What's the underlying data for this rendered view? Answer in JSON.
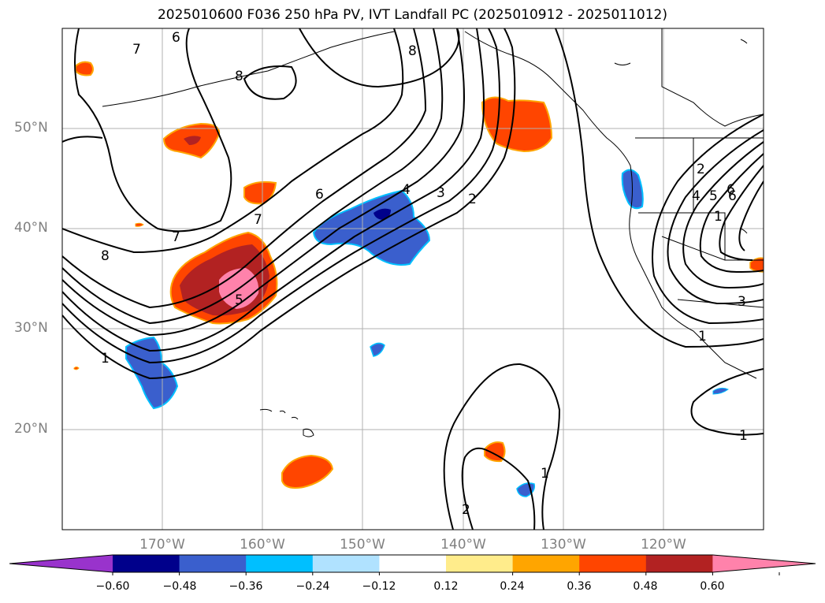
{
  "title": "2025010600 F036 250 hPa PV, IVT Landfall PC (2025010912 - 2025011012)",
  "lat_labels": [
    "50°N",
    "40°N",
    "30°N",
    "20°N"
  ],
  "lon_labels": [
    "170°W",
    "160°W",
    "150°W",
    "140°W",
    "130°W",
    "120°W"
  ],
  "colorbar": {
    "ticks": [
      "−0.60",
      "−0.48",
      "−0.36",
      "−0.24",
      "−0.12",
      "0.12",
      "0.24",
      "0.36",
      "0.48",
      "0.60"
    ],
    "colors": [
      "#9933cc",
      "#00008b",
      "#3a5fcd",
      "#00bfff",
      "#b0e2ff",
      "#ffffff",
      "#ffec8b",
      "#ffa500",
      "#ff4500",
      "#b22222",
      "#ff82ab"
    ]
  },
  "contour_labels": [
    "6",
    "7",
    "8",
    "8",
    "6",
    "7",
    "7",
    "8",
    "1",
    "5",
    "6",
    "4",
    "3",
    "2",
    "2",
    "4",
    "5",
    "6",
    "1",
    "3",
    "1",
    "1",
    "2",
    "1"
  ],
  "colors": {
    "pv_negative": "#3a5fcd",
    "pv_positive": "#ff4500",
    "contour": "#000000",
    "grid": "#b0b0b0"
  }
}
